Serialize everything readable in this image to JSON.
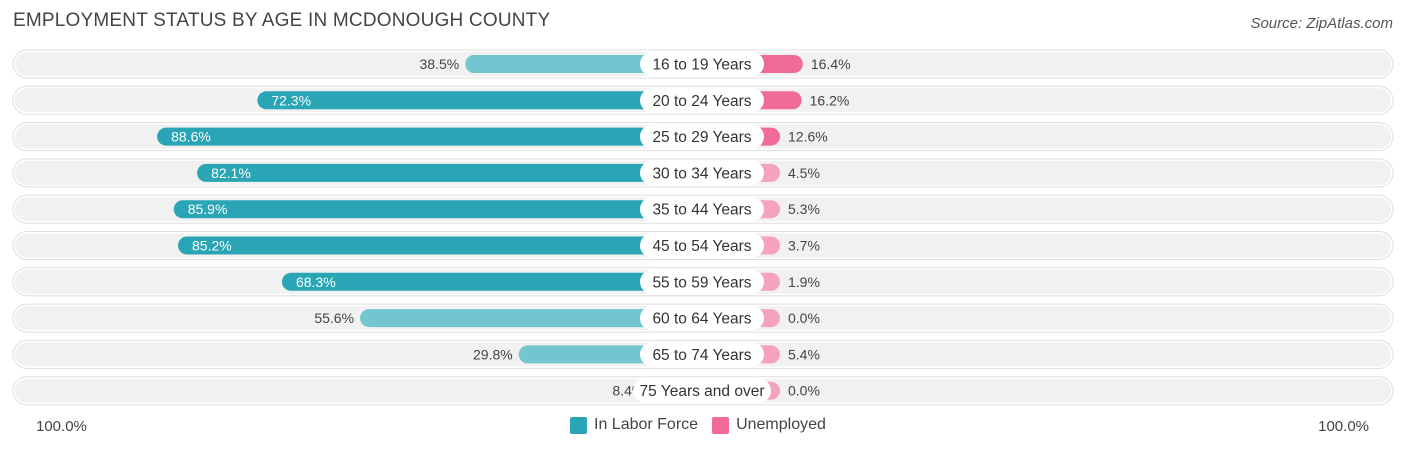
{
  "title": "EMPLOYMENT STATUS BY AGE IN MCDONOUGH COUNTY",
  "source": "Source: ZipAtlas.com",
  "colors": {
    "labor_dark": "#2aa5b5",
    "labor_light": "#72c6d0",
    "unemp_dark": "#f06b96",
    "unemp_light": "#f5a3bd",
    "row_bg": "#f1f1f1"
  },
  "chart_data": {
    "type": "bar",
    "orientation": "horizontal-diverging",
    "categories": [
      "16 to 19 Years",
      "20 to 24 Years",
      "25 to 29 Years",
      "30 to 34 Years",
      "35 to 44 Years",
      "45 to 54 Years",
      "55 to 59 Years",
      "60 to 64 Years",
      "65 to 74 Years",
      "75 Years and over"
    ],
    "series": [
      {
        "name": "In Labor Force",
        "values": [
          38.5,
          72.3,
          88.6,
          82.1,
          85.9,
          85.2,
          68.3,
          55.6,
          29.8,
          8.4
        ],
        "labels": [
          "38.5%",
          "72.3%",
          "88.6%",
          "82.1%",
          "85.9%",
          "85.2%",
          "68.3%",
          "55.6%",
          "29.8%",
          "8.4%"
        ]
      },
      {
        "name": "Unemployed",
        "values": [
          16.4,
          16.2,
          12.6,
          4.5,
          5.3,
          3.7,
          1.9,
          0.0,
          5.4,
          0.0
        ],
        "labels": [
          "16.4%",
          "16.2%",
          "12.6%",
          "4.5%",
          "5.3%",
          "3.7%",
          "1.9%",
          "0.0%",
          "5.4%",
          "0.0%"
        ]
      }
    ],
    "axis_left_label": "100.0%",
    "axis_right_label": "100.0%",
    "xlim": [
      -100,
      100
    ],
    "legend_position": "bottom-center"
  }
}
